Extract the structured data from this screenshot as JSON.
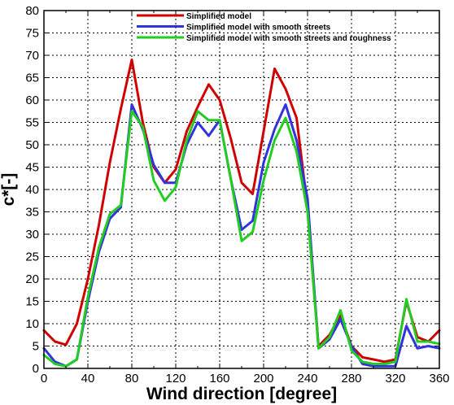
{
  "chart_data": {
    "type": "line",
    "title": "",
    "xlabel": "Wind direction [degree]",
    "ylabel": "c*[-]",
    "xlim": [
      0,
      360
    ],
    "ylim": [
      0,
      80
    ],
    "xticks": [
      0,
      40,
      80,
      120,
      160,
      200,
      240,
      280,
      320,
      360
    ],
    "yticks": [
      0,
      5,
      10,
      15,
      20,
      25,
      30,
      35,
      40,
      45,
      50,
      55,
      60,
      65,
      70,
      75,
      80
    ],
    "grid": true,
    "legend_position": "top-center",
    "x": [
      0,
      10,
      20,
      30,
      40,
      50,
      60,
      70,
      80,
      90,
      100,
      110,
      120,
      130,
      140,
      150,
      160,
      170,
      180,
      190,
      200,
      210,
      220,
      230,
      240,
      250,
      260,
      270,
      280,
      290,
      300,
      310,
      320,
      330,
      340,
      350,
      360
    ],
    "series": [
      {
        "name": "Simplified model",
        "color": "#d00000",
        "values": [
          8.5,
          6,
          5.3,
          10,
          20,
          32,
          46,
          58,
          69,
          55,
          45,
          41.5,
          44.5,
          53,
          58.5,
          63.5,
          60,
          51.5,
          41.5,
          39,
          53,
          67,
          62.5,
          56,
          36,
          5,
          7.5,
          12,
          5,
          2.5,
          2,
          1.5,
          2,
          15,
          7,
          6,
          8.5
        ]
      },
      {
        "name": "Simplified model with smooth streets",
        "color": "#3333dd",
        "values": [
          4.5,
          1.5,
          0.5,
          2,
          15,
          26,
          33.5,
          36,
          59,
          53.5,
          45.5,
          41.5,
          41.5,
          50,
          55,
          52,
          55.5,
          42.5,
          31,
          33,
          46,
          53.5,
          59,
          51,
          38,
          4.5,
          6.5,
          11,
          5,
          1,
          0.5,
          0.5,
          0.5,
          9.5,
          4.5,
          5,
          4.5
        ]
      },
      {
        "name": "Simplified model with smooth streets and roughness",
        "color": "#22cc22",
        "values": [
          3,
          1,
          0.5,
          2,
          16,
          27,
          34.5,
          36.5,
          57.5,
          54,
          42,
          37.5,
          40.5,
          51,
          57.5,
          55.5,
          55.5,
          42.5,
          28.5,
          30.5,
          42,
          51,
          56,
          48.5,
          35,
          4.5,
          7,
          13,
          4,
          1.5,
          1,
          1,
          1.5,
          15.5,
          6,
          6,
          5.5
        ]
      }
    ]
  }
}
